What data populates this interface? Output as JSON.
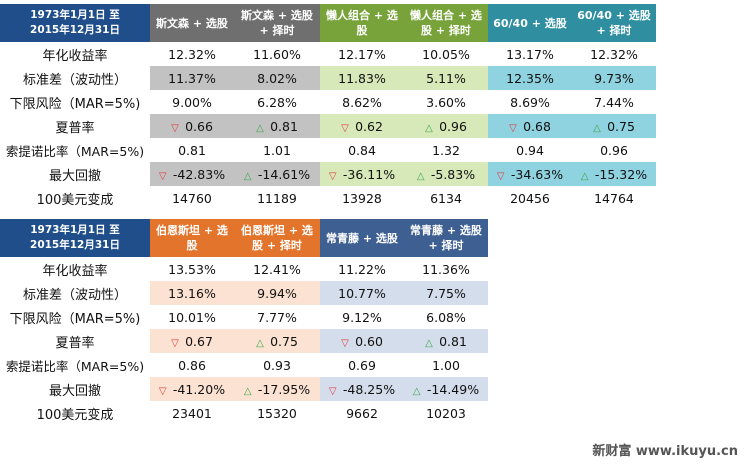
{
  "colors": {
    "corner_header": "#1f4e8a",
    "gray_header": "#6f6f6f",
    "gray_shade": "#c2c2c2",
    "green_header": "#77a33a",
    "green_shade": "#d7e9b8",
    "teal_header": "#2f8ea0",
    "teal_shade": "#8fd2e0",
    "orange_header": "#e2742b",
    "orange_shade": "#fbe2d2",
    "blue_header": "#3e5f92",
    "blue_shade": "#d3ddeb",
    "up_arrow": "#3aa64a",
    "down_arrow": "#e04040"
  },
  "table1": {
    "corner": [
      "1973年1月1日 至",
      "2015年12月31日"
    ],
    "headers": [
      "斯文森 + 选股",
      "斯文森 + 选股 + 择时",
      "懒人组合 + 选股",
      "懒人组合 + 选股 + 择时",
      "60/40 + 选股",
      "60/40 + 选股 + 择时"
    ],
    "rows": [
      {
        "label": "年化收益率",
        "values": [
          "12.32%",
          "11.60%",
          "12.17%",
          "10.05%",
          "13.17%",
          "12.32%"
        ]
      },
      {
        "label": "标准差（波动性）",
        "values": [
          "11.37%",
          "8.02%",
          "11.83%",
          "5.11%",
          "12.35%",
          "9.73%"
        ]
      },
      {
        "label": "下限风险（MAR=5%)",
        "values": [
          "9.00%",
          "6.28%",
          "8.62%",
          "3.60%",
          "8.69%",
          "7.44%"
        ]
      },
      {
        "label": "夏普率",
        "values": [
          "0.66",
          "0.81",
          "0.62",
          "0.96",
          "0.68",
          "0.75"
        ]
      },
      {
        "label": "索提诺比率（MAR=5%)",
        "values": [
          "0.81",
          "1.01",
          "0.84",
          "1.32",
          "0.94",
          "0.96"
        ]
      },
      {
        "label": "最大回撤",
        "values": [
          "-42.83%",
          "-14.61%",
          "-36.11%",
          "-5.83%",
          "-34.63%",
          "-15.32%"
        ]
      },
      {
        "label": "100美元变成",
        "values": [
          "14760",
          "11189",
          "13928",
          "6134",
          "20456",
          "14764"
        ]
      }
    ]
  },
  "table2": {
    "corner": [
      "1973年1月1日 至",
      "2015年12月31日"
    ],
    "headers": [
      "伯恩斯坦 + 选股",
      "伯恩斯坦 + 选股 + 择时",
      "常青藤 + 选股",
      "常青藤 + 选股 + 择时"
    ],
    "rows": [
      {
        "label": "年化收益率",
        "values": [
          "13.53%",
          "12.41%",
          "11.22%",
          "11.36%"
        ]
      },
      {
        "label": "标准差（波动性）",
        "values": [
          "13.16%",
          "9.94%",
          "10.77%",
          "7.75%"
        ]
      },
      {
        "label": "下限风险（MAR=5%)",
        "values": [
          "10.01%",
          "7.77%",
          "9.12%",
          "6.08%"
        ]
      },
      {
        "label": "夏普率",
        "values": [
          "0.67",
          "0.75",
          "0.60",
          "0.81"
        ]
      },
      {
        "label": "索提诺比率（MAR=5%)",
        "values": [
          "0.86",
          "0.93",
          "0.69",
          "1.00"
        ]
      },
      {
        "label": "最大回撤",
        "values": [
          "-41.20%",
          "-17.95%",
          "-48.25%",
          "-14.49%"
        ]
      },
      {
        "label": "100美元变成",
        "values": [
          "23401",
          "15320",
          "9662",
          "10203"
        ]
      }
    ]
  },
  "arrows": {
    "down": "▽",
    "up": "△"
  },
  "watermark": "新财富 www.ikuyu.cn"
}
